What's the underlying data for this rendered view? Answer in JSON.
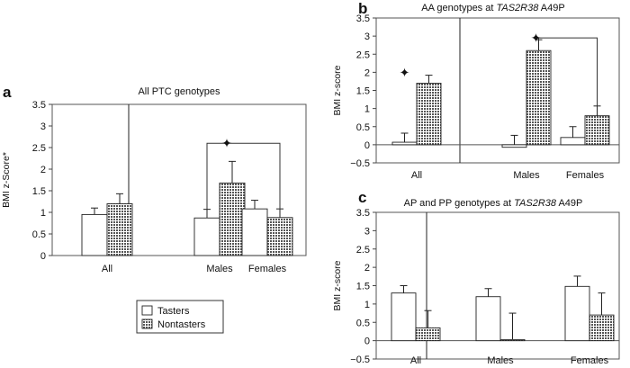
{
  "legend": {
    "items": [
      {
        "label": "Tasters",
        "color": "#ffffff"
      },
      {
        "label": "Nontasters",
        "color": "#7a7a7a"
      }
    ],
    "placement": "bottom-center"
  },
  "chart_data": [
    {
      "type": "bar",
      "panel_label": "a",
      "title": "All PTC genotypes",
      "ylabel": "BMI z-Score*",
      "ylim": [
        0,
        3.5
      ],
      "yticks": [
        "0",
        "0.5",
        "1",
        "1.5",
        "2",
        "2.5",
        "3",
        "3.5"
      ],
      "categories": [
        "All",
        "Males",
        "Females"
      ],
      "series": [
        {
          "name": "Tasters",
          "values": [
            0.95,
            0.87,
            1.08
          ],
          "errors": [
            0.15,
            0.2,
            0.2
          ]
        },
        {
          "name": "Nontasters",
          "values": [
            1.2,
            1.68,
            0.88
          ],
          "errors": [
            0.23,
            0.5,
            0.2
          ]
        }
      ],
      "significance": [
        {
          "marker": "✦",
          "from": "Males",
          "to": "Females",
          "y": 2.6
        }
      ]
    },
    {
      "type": "bar",
      "panel_label": "b",
      "title_parts": [
        "AA genotypes at ",
        "TAS2R38",
        " A49P"
      ],
      "ylabel": "BMI z-score",
      "ylim": [
        -0.5,
        3.5
      ],
      "yticks": [
        "−0.5",
        "0",
        "0.5",
        "1",
        "1.5",
        "2",
        "2.5",
        "3",
        "3.5"
      ],
      "categories": [
        "All",
        "Males",
        "Females"
      ],
      "series": [
        {
          "name": "Tasters",
          "values": [
            0.07,
            -0.07,
            0.2
          ],
          "errors": [
            0.25,
            0.33,
            0.3
          ]
        },
        {
          "name": "Nontasters",
          "values": [
            1.7,
            2.6,
            0.8
          ],
          "errors": [
            0.22,
            0.3,
            0.27
          ]
        }
      ],
      "significance": [
        {
          "marker": "✦",
          "over": "All",
          "y": 2.0
        },
        {
          "marker": "✦",
          "from": "Males",
          "to": "Females",
          "y": 2.95
        }
      ]
    },
    {
      "type": "bar",
      "panel_label": "c",
      "title_parts": [
        "AP and PP genotypes at ",
        "TAS2R38",
        " A49P"
      ],
      "ylabel": "BMI z-score",
      "ylim": [
        -0.5,
        3.5
      ],
      "yticks": [
        "−0.5",
        "0",
        "0.5",
        "1",
        "1.5",
        "2",
        "2.5",
        "3",
        "3.5"
      ],
      "categories": [
        "All",
        "Males",
        "Females"
      ],
      "series": [
        {
          "name": "Tasters",
          "values": [
            1.3,
            1.2,
            1.48
          ],
          "errors": [
            0.2,
            0.22,
            0.28
          ]
        },
        {
          "name": "Nontasters",
          "values": [
            0.35,
            0.03,
            0.7
          ],
          "errors": [
            0.47,
            0.72,
            0.6
          ]
        }
      ],
      "significance": []
    }
  ]
}
